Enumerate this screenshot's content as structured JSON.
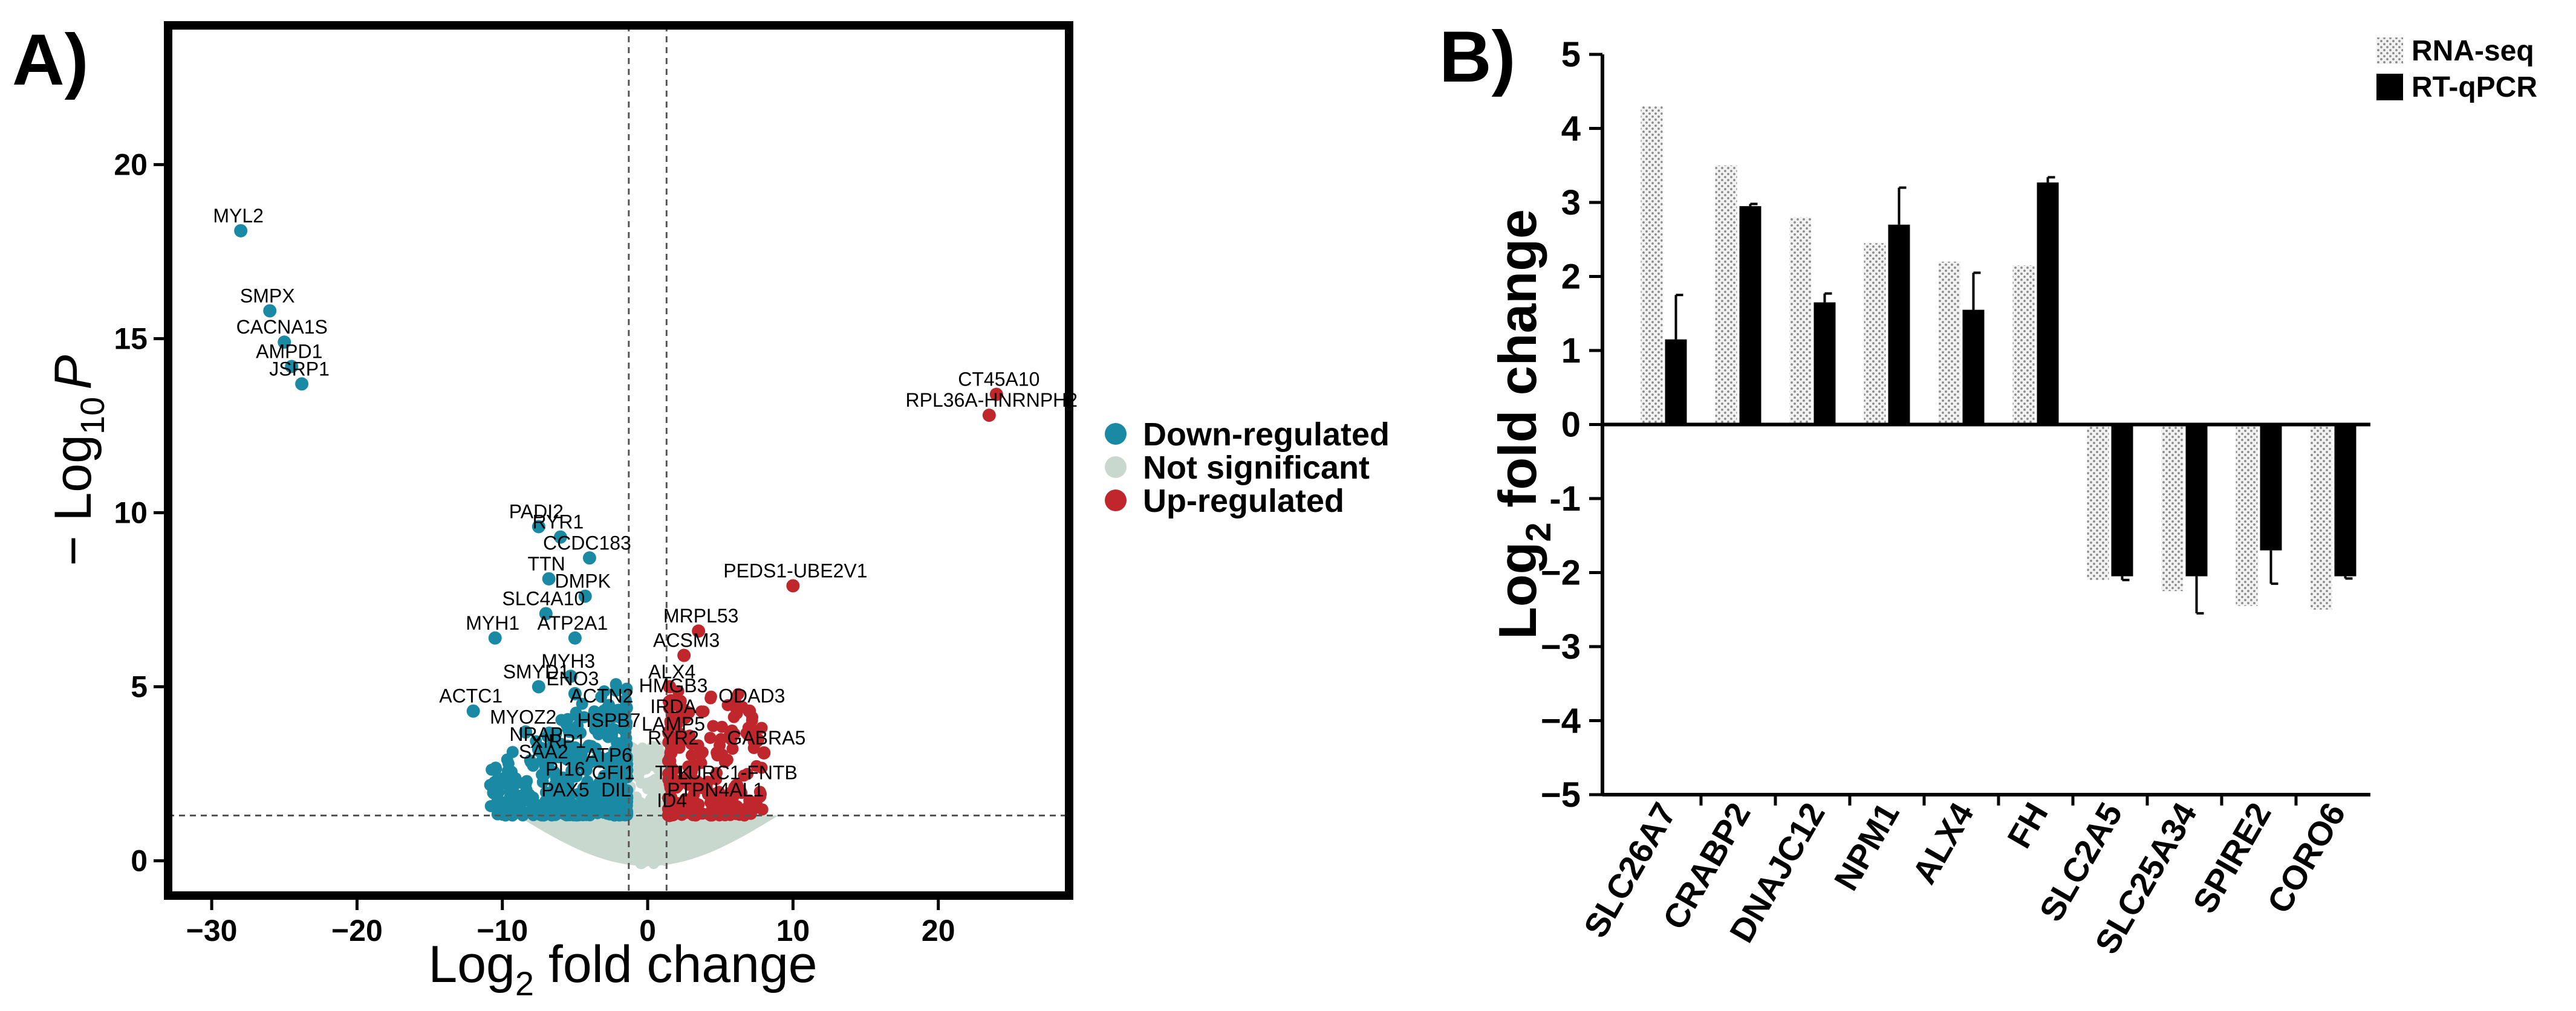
{
  "colors": {
    "down": "#1a8aa4",
    "ns": "#c8d8cf",
    "up": "#c0272d",
    "rna": "#d9d9d9",
    "qpcr": "#000000"
  },
  "chart_data": [
    {
      "panel_label": "A)",
      "type": "scatter",
      "subtype": "volcano",
      "xlabel_main": "Log",
      "xlabel_sub": "2",
      "xlabel_rest": " fold change",
      "ylabel_main": "− Log",
      "ylabel_sub": "10",
      "ylabel_p": "P",
      "xlim": [
        -33,
        29
      ],
      "ylim": [
        -1,
        24
      ],
      "xticks": [
        -30,
        -20,
        -10,
        0,
        10,
        20
      ],
      "xtick_labels": [
        "−30",
        "−20",
        "−10",
        "0",
        "10",
        "20"
      ],
      "yticks": [
        0,
        5,
        10,
        15,
        20
      ],
      "ytick_labels": [
        "0",
        "5",
        "10",
        "15",
        "20"
      ],
      "fc_cutoff": [
        -1.3,
        1.3
      ],
      "p_cutoff": 1.3,
      "legend": [
        {
          "key": "down",
          "label": "Down-regulated"
        },
        {
          "key": "ns",
          "label": "Not significant"
        },
        {
          "key": "up",
          "label": "Up-regulated"
        }
      ],
      "labeled_genes": [
        {
          "gene": "MYL2",
          "x": -28,
          "y": 18.1,
          "group": "down"
        },
        {
          "gene": "SMPX",
          "x": -26,
          "y": 15.8,
          "group": "down"
        },
        {
          "gene": "CACNA1S",
          "x": -25,
          "y": 14.9,
          "group": "down"
        },
        {
          "gene": "AMPD1",
          "x": -24.5,
          "y": 14.2,
          "group": "down"
        },
        {
          "gene": "JSRP1",
          "x": -23.8,
          "y": 13.7,
          "group": "down"
        },
        {
          "gene": "CT45A10",
          "x": 24,
          "y": 13.4,
          "group": "up"
        },
        {
          "gene": "RPL36A-HNRNPH2",
          "x": 23.5,
          "y": 12.8,
          "group": "up"
        },
        {
          "gene": "PADI2",
          "x": -7.5,
          "y": 9.6,
          "group": "down"
        },
        {
          "gene": "RYR1",
          "x": -6,
          "y": 9.3,
          "group": "down"
        },
        {
          "gene": "CCDC183",
          "x": -4,
          "y": 8.7,
          "group": "down"
        },
        {
          "gene": "TTN",
          "x": -6.8,
          "y": 8.1,
          "group": "down"
        },
        {
          "gene": "DMPK",
          "x": -4.3,
          "y": 7.6,
          "group": "down"
        },
        {
          "gene": "PEDS1-UBE2V1",
          "x": 10,
          "y": 7.9,
          "group": "up"
        },
        {
          "gene": "SLC4A10",
          "x": -7,
          "y": 7.1,
          "group": "down"
        },
        {
          "gene": "MYH1",
          "x": -10.5,
          "y": 6.4,
          "group": "down"
        },
        {
          "gene": "ATP2A1",
          "x": -5,
          "y": 6.4,
          "group": "down"
        },
        {
          "gene": "MRPL53",
          "x": 3.5,
          "y": 6.6,
          "group": "up"
        },
        {
          "gene": "ACSM3",
          "x": 2.5,
          "y": 5.9,
          "group": "up"
        },
        {
          "gene": "MYH3",
          "x": -5.3,
          "y": 5.3,
          "group": "down"
        },
        {
          "gene": "SMYD1",
          "x": -7.5,
          "y": 5,
          "group": "down"
        },
        {
          "gene": "ENO3",
          "x": -5,
          "y": 4.8,
          "group": "down"
        },
        {
          "gene": "ALX4",
          "x": 1.5,
          "y": 5,
          "group": "up"
        },
        {
          "gene": "HMGB3",
          "x": 1.6,
          "y": 4.6,
          "group": "up"
        },
        {
          "gene": "ODAD3",
          "x": 7,
          "y": 4.3,
          "group": "up"
        },
        {
          "gene": "ACTC1",
          "x": -12,
          "y": 4.3,
          "group": "down"
        },
        {
          "gene": "ACTN2",
          "x": -3,
          "y": 4.3,
          "group": "down"
        },
        {
          "gene": "IRDA",
          "x": 1.6,
          "y": 4,
          "group": "up"
        },
        {
          "gene": "MYOZ2",
          "x": -8.4,
          "y": 3.7,
          "group": "down"
        },
        {
          "gene": "HSPB7",
          "x": -2.5,
          "y": 3.6,
          "group": "down"
        },
        {
          "gene": "LAMP5",
          "x": 1.6,
          "y": 3.5,
          "group": "up"
        },
        {
          "gene": "GABRA5",
          "x": 8,
          "y": 3.1,
          "group": "up"
        },
        {
          "gene": "NRAP",
          "x": -7.5,
          "y": 3.2,
          "group": "down"
        },
        {
          "gene": "XIRP1",
          "x": -6,
          "y": 3,
          "group": "down"
        },
        {
          "gene": "RYR2",
          "x": 1.6,
          "y": 3.1,
          "group": "up"
        },
        {
          "gene": "SAA2",
          "x": -7,
          "y": 2.7,
          "group": "down"
        },
        {
          "gene": "ATP6",
          "x": -2.5,
          "y": 2.6,
          "group": "down"
        },
        {
          "gene": "PI16",
          "x": -5.5,
          "y": 2.2,
          "group": "down"
        },
        {
          "gene": "GFI1",
          "x": -2.2,
          "y": 2.1,
          "group": "down"
        },
        {
          "gene": "TTK",
          "x": 1.6,
          "y": 2.1,
          "group": "up"
        },
        {
          "gene": "LURC1-FNTB",
          "x": 6,
          "y": 2.1,
          "group": "up"
        },
        {
          "gene": "PAX5",
          "x": -5.5,
          "y": 1.6,
          "group": "down"
        },
        {
          "gene": "DIL",
          "x": -2,
          "y": 1.6,
          "group": "down"
        },
        {
          "gene": "PTPN4AL1",
          "x": 4.5,
          "y": 1.6,
          "group": "up"
        },
        {
          "gene": "ID4",
          "x": 1.5,
          "y": 1.3,
          "group": "up"
        }
      ]
    },
    {
      "panel_label": "B)",
      "type": "bar",
      "ylabel_main": "Log",
      "ylabel_sub": "2",
      "ylabel_rest": " fold change",
      "ylim": [
        -5,
        5
      ],
      "yticks": [
        -5,
        -4,
        -3,
        -2,
        -1,
        0,
        1,
        2,
        3,
        4,
        5
      ],
      "ytick_labels": [
        "−5",
        "−4",
        "−3",
        "−2",
        "-1",
        "0",
        "1",
        "2",
        "3",
        "4",
        "5"
      ],
      "categories": [
        "SLC26A7",
        "CRABP2",
        "DNAJC12",
        "NPM1",
        "ALX4",
        "FH",
        "SLC2A5",
        "SLC25A34",
        "SPIRE2",
        "CORO6"
      ],
      "series": [
        {
          "name": "RNA-seq",
          "values": [
            4.3,
            3.5,
            2.8,
            2.45,
            2.2,
            2.15,
            -2.1,
            -2.25,
            -2.45,
            -2.5
          ]
        },
        {
          "name": "RT-qPCR",
          "values": [
            1.15,
            2.95,
            1.65,
            2.7,
            1.55,
            3.27,
            -2.05,
            -2.05,
            -1.7,
            -2.05
          ],
          "errors": [
            0.6,
            0.03,
            0.12,
            0.5,
            0.5,
            0.07,
            0.05,
            0.5,
            0.45,
            0.03
          ]
        }
      ],
      "legend_position": "top-right"
    }
  ]
}
